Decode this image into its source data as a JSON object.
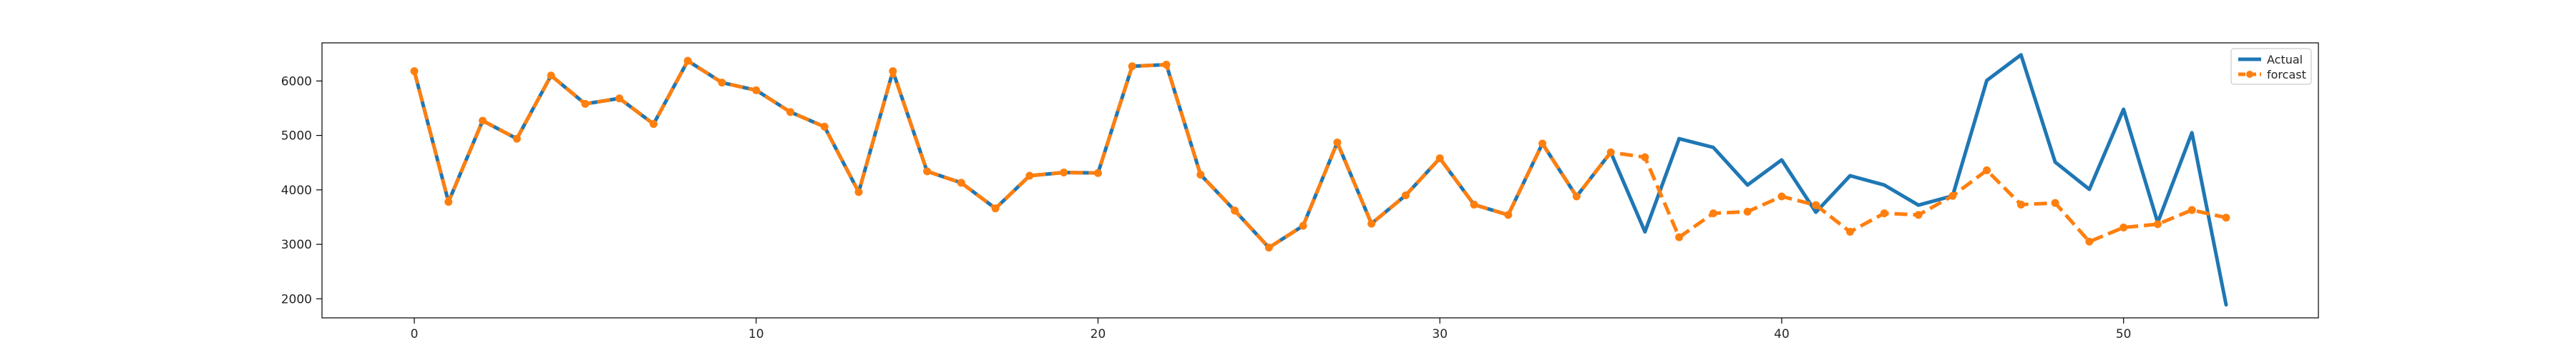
{
  "chart_data": {
    "type": "line",
    "title": "",
    "xlabel": "",
    "ylabel": "",
    "xlim": [
      -2.7,
      55.7
    ],
    "ylim": [
      1650,
      6700
    ],
    "xticks": [
      0,
      10,
      20,
      30,
      40,
      50
    ],
    "yticks": [
      2000,
      3000,
      4000,
      5000,
      6000
    ],
    "grid": false,
    "legend_position": "top-right",
    "series": [
      {
        "name": "Actual",
        "color": "#1f77b4",
        "style": "solid",
        "markers": false,
        "values": [
          6180,
          3780,
          5270,
          4940,
          6100,
          5580,
          5680,
          5210,
          6370,
          5970,
          5830,
          5430,
          5160,
          3960,
          6180,
          4340,
          4130,
          3660,
          4260,
          4320,
          4310,
          6270,
          6300,
          4280,
          3620,
          2940,
          3340,
          4870,
          3380,
          3900,
          4580,
          3730,
          3540,
          4850,
          3880,
          4690,
          3230,
          4940,
          4780,
          4090,
          4550,
          3590,
          4260,
          4090,
          3720,
          3890,
          6010,
          6480,
          4510,
          4010,
          5480,
          3400,
          5050,
          1890
        ]
      },
      {
        "name": "forcast",
        "color": "#ff7f0e",
        "style": "dashed",
        "markers": true,
        "values": [
          6180,
          3780,
          5270,
          4940,
          6100,
          5580,
          5680,
          5210,
          6370,
          5970,
          5830,
          5430,
          5160,
          3960,
          6180,
          4340,
          4130,
          3660,
          4260,
          4320,
          4310,
          6270,
          6300,
          4280,
          3620,
          2940,
          3340,
          4870,
          3380,
          3900,
          4580,
          3730,
          3540,
          4850,
          3880,
          4690,
          4600,
          3130,
          3570,
          3600,
          3880,
          3720,
          3230,
          3570,
          3540,
          3890,
          4360,
          3730,
          3760,
          3050,
          3310,
          3370,
          3630,
          3490
        ]
      }
    ]
  }
}
